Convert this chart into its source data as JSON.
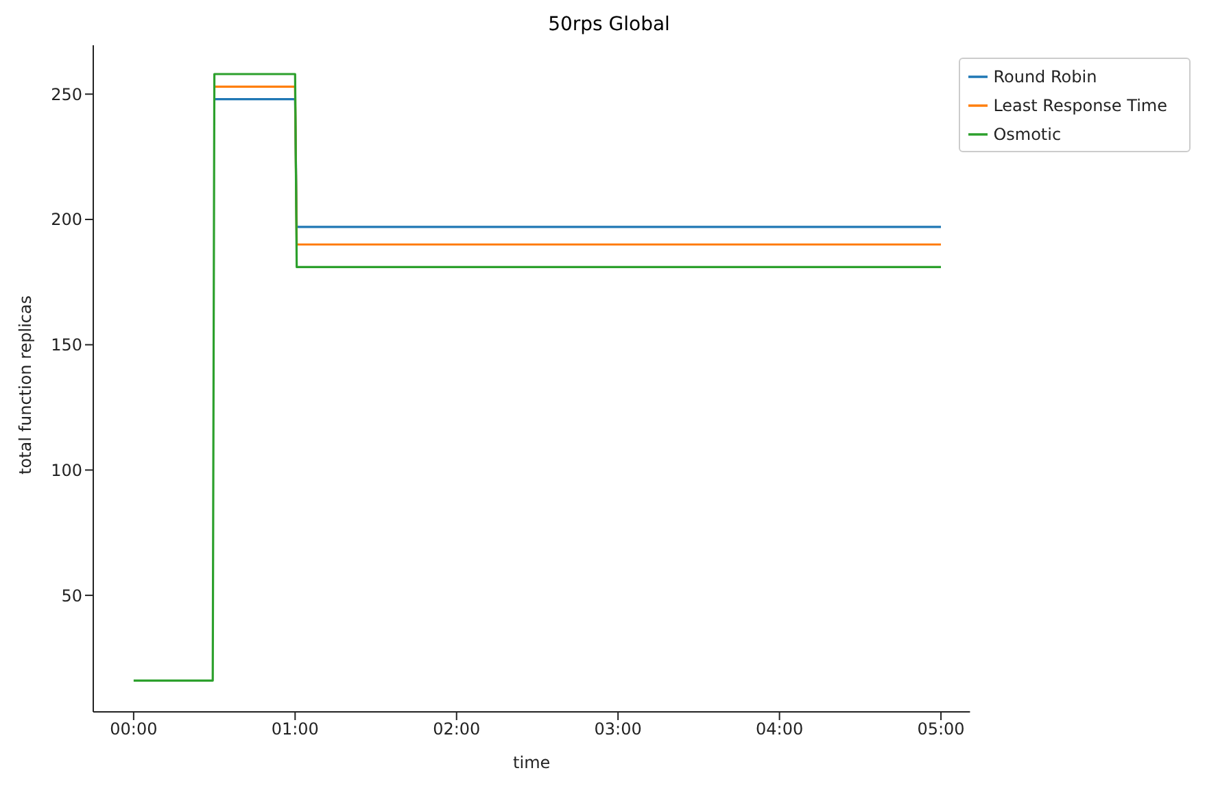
{
  "chart_data": {
    "type": "line",
    "title": "50rps Global",
    "xlabel": "time",
    "ylabel": "total function replicas",
    "x": [
      0,
      0.49,
      0.5,
      1.0,
      1.01,
      5.0
    ],
    "series": [
      {
        "name": "Round Robin",
        "color": "#1f77b4",
        "values": [
          null,
          null,
          248,
          248,
          197,
          197
        ]
      },
      {
        "name": "Least Response Time",
        "color": "#ff7f0e",
        "values": [
          null,
          null,
          253,
          253,
          190,
          190
        ]
      },
      {
        "name": "Osmotic",
        "color": "#2ca02c",
        "values": [
          16,
          16,
          258,
          258,
          181,
          181
        ]
      }
    ],
    "xlim": [
      -0.25,
      5.18
    ],
    "xticks": [
      {
        "value": 0,
        "label": "00:00"
      },
      {
        "value": 1,
        "label": "01:00"
      },
      {
        "value": 2,
        "label": "02:00"
      },
      {
        "value": 3,
        "label": "03:00"
      },
      {
        "value": 4,
        "label": "04:00"
      },
      {
        "value": 5,
        "label": "05:00"
      }
    ],
    "ylim": [
      3.5,
      269.5
    ],
    "yticks": [
      50,
      100,
      150,
      200,
      250
    ],
    "grid": false,
    "legend": "top right",
    "marker": "none",
    "line_style": "solid"
  }
}
